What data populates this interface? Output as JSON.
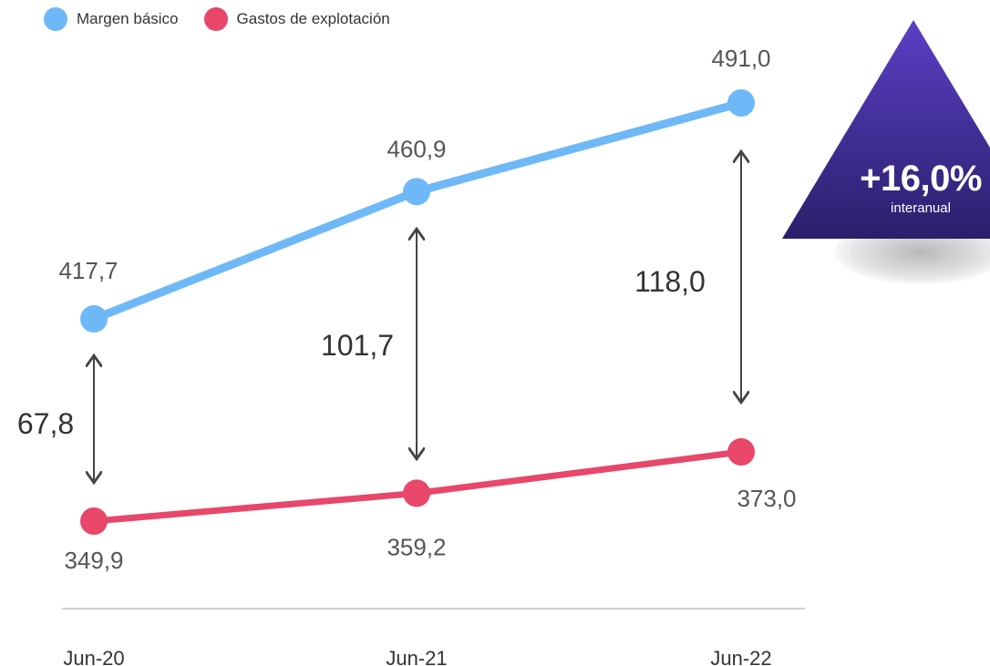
{
  "legend": [
    {
      "label": "Margen básico",
      "color": "#6FB8F7"
    },
    {
      "label": "Gastos de explotación",
      "color": "#E8476A"
    }
  ],
  "badge": {
    "value": "+16,0%",
    "subtitle": "interanual",
    "color_top": "#5B3FC4",
    "color_bottom": "#2A1F6B"
  },
  "chart_data": {
    "type": "line",
    "categories": [
      "Jun-20",
      "Jun-21",
      "Jun-22"
    ],
    "series": [
      {
        "name": "Margen básico",
        "color": "#6FB8F7",
        "values": [
          417.7,
          460.9,
          491.0
        ],
        "labels": [
          "417,7",
          "460,9",
          "491,0"
        ]
      },
      {
        "name": "Gastos de explotación",
        "color": "#E8476A",
        "values": [
          349.9,
          359.2,
          373.0
        ],
        "labels": [
          "349,9",
          "359,2",
          "373,0"
        ]
      }
    ],
    "differences": [
      "67,8",
      "101,7",
      "118,0"
    ],
    "title": "",
    "xlabel": "",
    "ylabel": "",
    "grid": false
  }
}
